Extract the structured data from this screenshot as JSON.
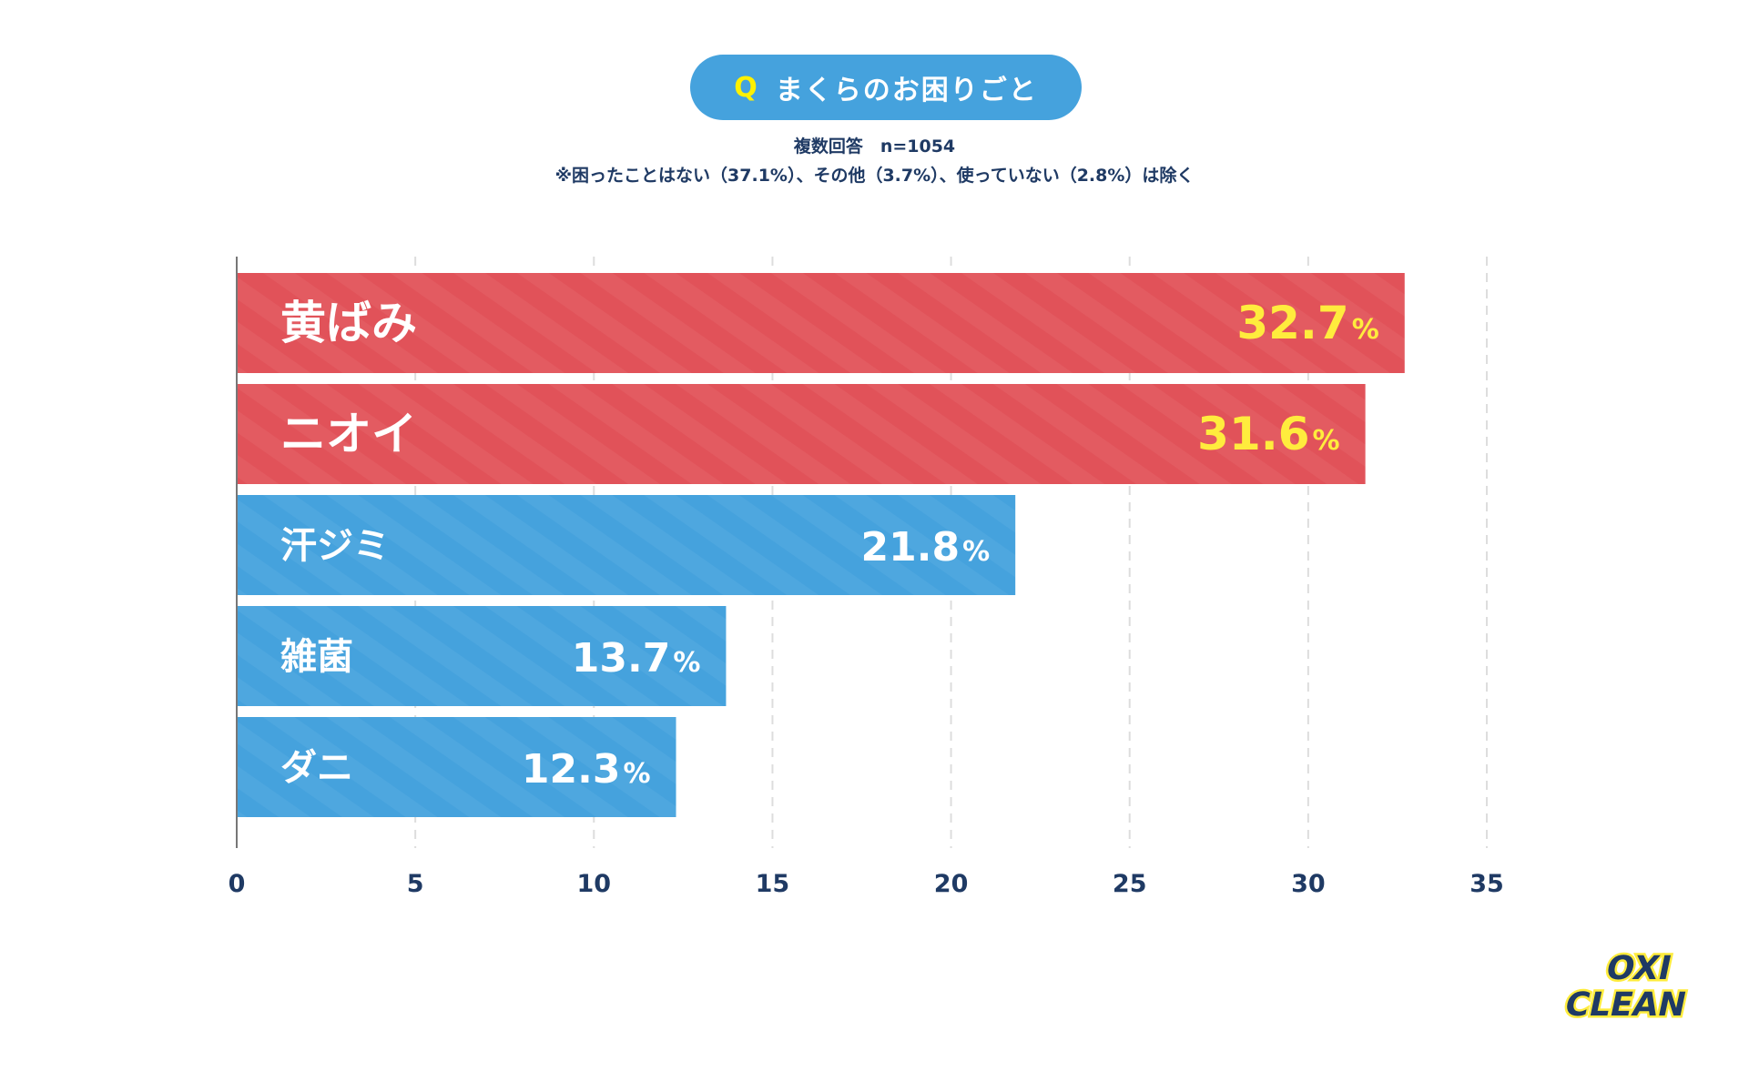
{
  "header": {
    "q_label": "Q",
    "title": "まくらのお困りごと",
    "note1": "複数回答　n=1054",
    "note2": "※困ったことはない（37.1%）、その他（3.7%）、使っていない（2.8%）は除く"
  },
  "chart_data": {
    "type": "bar",
    "orientation": "horizontal",
    "title": "まくらのお困りごと",
    "categories": [
      "黄ばみ",
      "ニオイ",
      "汗ジミ",
      "雑菌",
      "ダニ"
    ],
    "values": [
      32.7,
      31.6,
      21.8,
      13.7,
      12.3
    ],
    "value_labels": [
      "32.7",
      "31.6",
      "21.8",
      "13.7",
      "12.3"
    ],
    "unit": "%",
    "xlim": [
      0,
      35
    ],
    "xticks": [
      "0",
      "5",
      "10",
      "15",
      "20",
      "25",
      "30",
      "35"
    ],
    "xtick_values": [
      0,
      5,
      10,
      15,
      20,
      25,
      30,
      35
    ],
    "grid": true,
    "highlight_count": 2,
    "colors": {
      "highlight": "#e15259",
      "normal": "#45a2dd",
      "highlight_value": "#ffec3d",
      "normal_value": "#ffffff",
      "axis": "#777777",
      "grid": "#dddddd",
      "tick": "#1f3a64"
    }
  },
  "logo": {
    "line1": "OXI",
    "line2": "CLEAN"
  }
}
